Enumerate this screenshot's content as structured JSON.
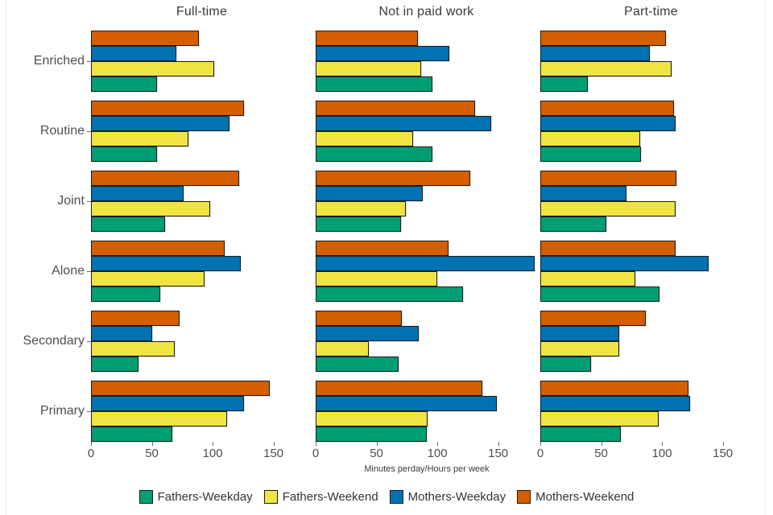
{
  "figure": {
    "xlabel": "Minutes perday/Hours per week",
    "text_color": "#3f3f3f",
    "background_color": "#ffffff"
  },
  "chart_data": {
    "type": "bar",
    "orientation": "horizontal",
    "title": "",
    "xlabel": "Minutes perday/Hours per week",
    "ylabel": "",
    "categories": [
      "Enriched",
      "Routine",
      "Joint",
      "Alone",
      "Secondary",
      "Primary"
    ],
    "x_ticks": [
      0,
      50,
      100,
      150
    ],
    "xlim": [
      0,
      182
    ],
    "grid": false,
    "legend_position": "bottom",
    "bar_row_order_top_to_bottom": [
      "Mothers-Weekend",
      "Mothers-Weekday",
      "Fathers-Weekend",
      "Fathers-Weekday"
    ],
    "legend": [
      {
        "name": "Fathers-Weekday",
        "color": "#009E73"
      },
      {
        "name": "Fathers-Weekend",
        "color": "#F0E442"
      },
      {
        "name": "Mothers-Weekday",
        "color": "#0072B2"
      },
      {
        "name": "Mothers-Weekend",
        "color": "#D55E00"
      }
    ],
    "facets": [
      {
        "title": "Full-time",
        "series": [
          {
            "name": "Fathers-Weekday",
            "color": "#009E73",
            "values": [
              54,
              54,
              61,
              57,
              39,
              67
            ]
          },
          {
            "name": "Fathers-Weekend",
            "color": "#F0E442",
            "values": [
              101,
              80,
              98,
              93,
              69,
              112
            ]
          },
          {
            "name": "Mothers-Weekday",
            "color": "#0072B2",
            "values": [
              70,
              114,
              76,
              123,
              50,
              126
            ]
          },
          {
            "name": "Mothers-Weekend",
            "color": "#D55E00",
            "values": [
              89,
              126,
              122,
              110,
              73,
              147
            ]
          }
        ]
      },
      {
        "title": "Not in paid work",
        "series": [
          {
            "name": "Fathers-Weekday",
            "color": "#009E73",
            "values": [
              96,
              96,
              70,
              121,
              68,
              91
            ]
          },
          {
            "name": "Fathers-Weekend",
            "color": "#F0E442",
            "values": [
              87,
              80,
              74,
              100,
              44,
              92
            ]
          },
          {
            "name": "Mothers-Weekday",
            "color": "#0072B2",
            "values": [
              110,
              144,
              88,
              180,
              85,
              149
            ]
          },
          {
            "name": "Mothers-Weekend",
            "color": "#D55E00",
            "values": [
              84,
              131,
              127,
              109,
              71,
              137
            ]
          }
        ]
      },
      {
        "title": "Part-time",
        "series": [
          {
            "name": "Fathers-Weekday",
            "color": "#009E73",
            "values": [
              39,
              83,
              54,
              98,
              42,
              66
            ]
          },
          {
            "name": "Fathers-Weekend",
            "color": "#F0E442",
            "values": [
              108,
              82,
              111,
              78,
              65,
              97
            ]
          },
          {
            "name": "Mothers-Weekday",
            "color": "#0072B2",
            "values": [
              90,
              111,
              71,
              138,
              65,
              123
            ]
          },
          {
            "name": "Mothers-Weekend",
            "color": "#D55E00",
            "values": [
              103,
              110,
              112,
              111,
              87,
              122
            ]
          }
        ]
      }
    ]
  }
}
